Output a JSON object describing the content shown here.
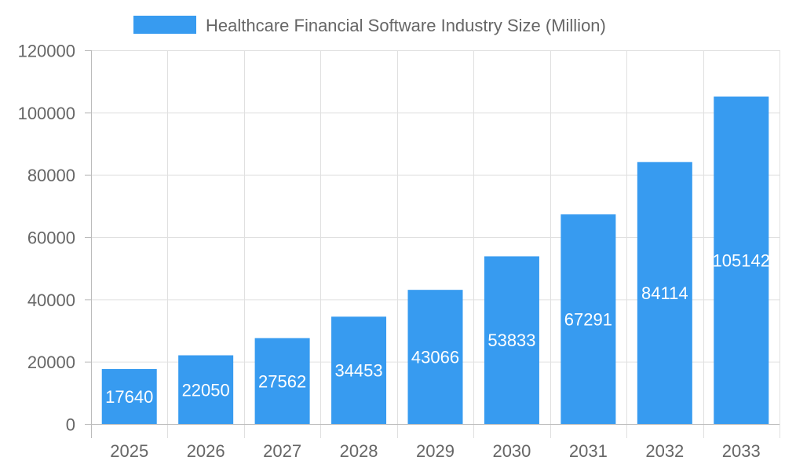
{
  "chart_data": {
    "type": "bar",
    "title": "",
    "xlabel": "",
    "ylabel": "",
    "categories": [
      "2025",
      "2026",
      "2027",
      "2028",
      "2029",
      "2030",
      "2031",
      "2032",
      "2033"
    ],
    "series": [
      {
        "name": "Healthcare Financial Software Industry Size (Million)",
        "values": [
          17640,
          22050,
          27562,
          34453,
          43066,
          53833,
          67291,
          84114,
          105142
        ],
        "color": "#379bf0"
      }
    ],
    "ylim": [
      0,
      120000
    ],
    "yticks": [
      0,
      20000,
      40000,
      60000,
      80000,
      100000,
      120000
    ],
    "grid": true,
    "legend": "top-center",
    "data_labels": true
  }
}
